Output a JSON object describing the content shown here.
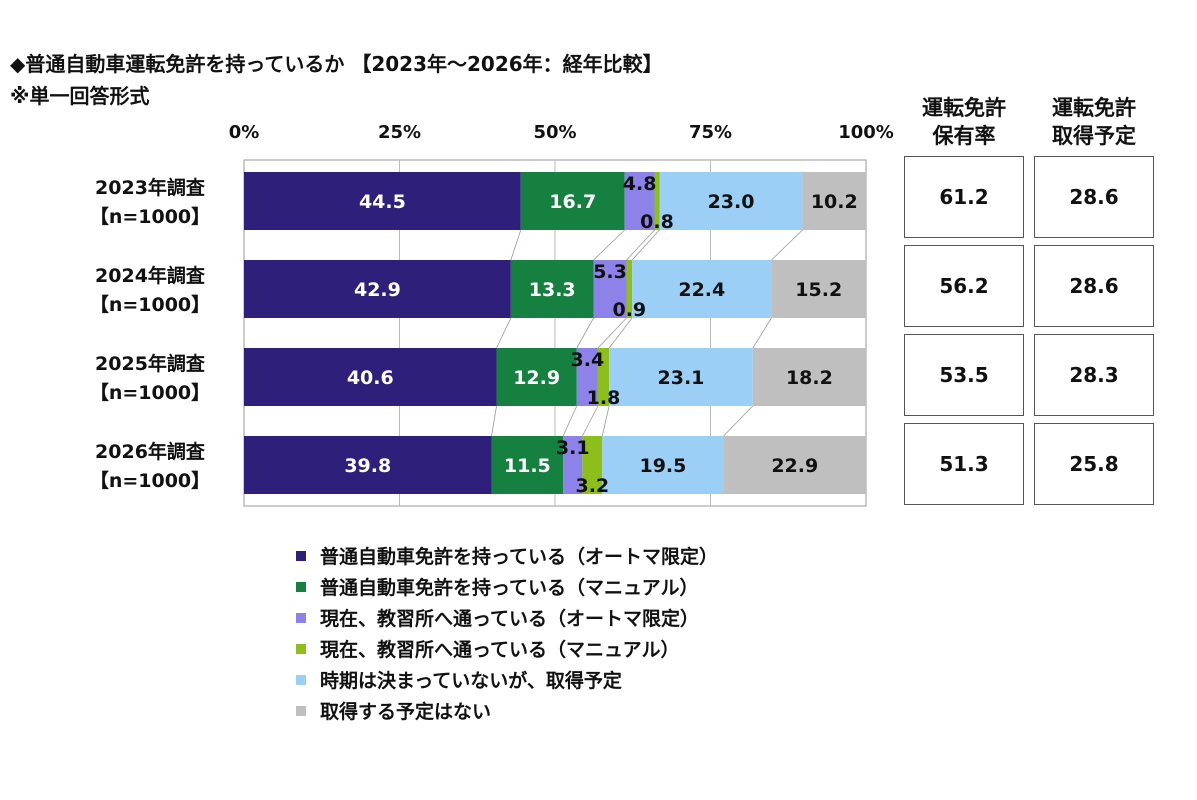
{
  "header": {
    "title": "◆普通自動車運転免許を持っているか 【2023年～2026年：経年比較】",
    "note": "※単一回答形式"
  },
  "chart_data": {
    "type": "bar",
    "orientation": "horizontal",
    "stacked": true,
    "percent_axis": true,
    "xlim": [
      0,
      100
    ],
    "x_ticks": [
      "0%",
      "25%",
      "50%",
      "75%",
      "100%"
    ],
    "grid": true,
    "legend_position": "bottom",
    "categories": [
      [
        "2023年調査",
        "【n=1000】"
      ],
      [
        "2024年調査",
        "【n=1000】"
      ],
      [
        "2025年調査",
        "【n=1000】"
      ],
      [
        "2026年調査",
        "【n=1000】"
      ]
    ],
    "series": [
      {
        "name": "普通自動車免許を持っている（オートマ限定）",
        "color": "#2e1f7a",
        "label_color": "#ffffff",
        "values": [
          44.5,
          42.9,
          40.6,
          39.8
        ],
        "labels": [
          "44.5",
          "42.9",
          "40.6",
          "39.8"
        ]
      },
      {
        "name": "普通自動車免許を持っている（マニュアル）",
        "color": "#168040",
        "label_color": "#ffffff",
        "values": [
          16.7,
          13.3,
          12.9,
          11.5
        ],
        "labels": [
          "16.7",
          "13.3",
          "12.9",
          "11.5"
        ]
      },
      {
        "name": "現在、教習所へ通っている（オートマ限定）",
        "color": "#8c82e8",
        "label_color": "#111111",
        "values": [
          4.8,
          5.3,
          3.4,
          3.1
        ],
        "labels": [
          "4.8",
          "5.3",
          "3.4",
          "3.1"
        ]
      },
      {
        "name": "現在、教習所へ通っている（マニュアル）",
        "color": "#8dbf1c",
        "label_color": "#111111",
        "values": [
          0.8,
          0.9,
          1.8,
          3.2
        ],
        "labels": [
          "0.8",
          "0.9",
          "1.8",
          "3.2"
        ]
      },
      {
        "name": "時期は決まっていないが、取得予定",
        "color": "#9ccff5",
        "label_color": "#111111",
        "values": [
          23.0,
          22.4,
          23.1,
          19.5
        ],
        "labels": [
          "23.0",
          "22.4",
          "23.1",
          "19.5"
        ]
      },
      {
        "name": "取得する予定はない",
        "color": "#c0bfbf",
        "label_color": "#111111",
        "values": [
          10.2,
          15.2,
          18.2,
          22.9
        ],
        "labels": [
          "10.2",
          "15.2",
          "18.2",
          "22.9"
        ]
      }
    ]
  },
  "side_table": {
    "columns": [
      {
        "header": [
          "運転免許",
          "保有率"
        ],
        "values": [
          "61.2",
          "56.2",
          "53.5",
          "51.3"
        ]
      },
      {
        "header": [
          "運転免許",
          "取得予定"
        ],
        "values": [
          "28.6",
          "28.6",
          "28.3",
          "25.8"
        ]
      }
    ]
  }
}
